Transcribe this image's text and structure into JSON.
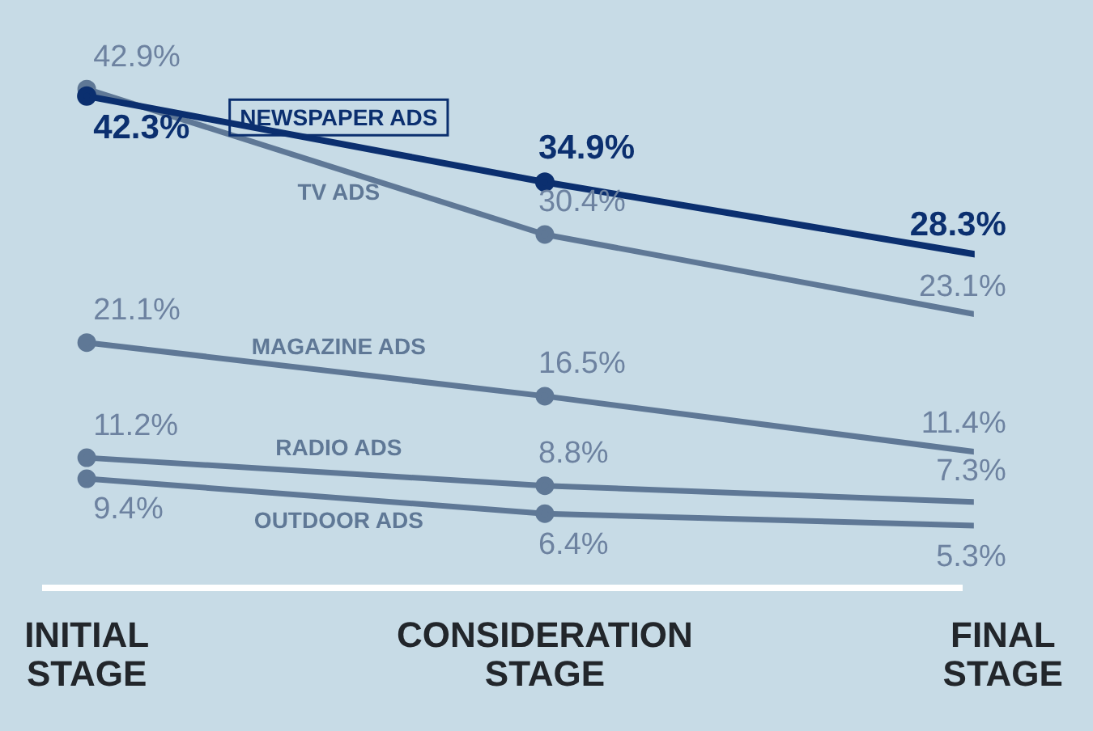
{
  "chart_data": {
    "type": "line",
    "categories": [
      "INITIAL STAGE",
      "CONSIDERATION STAGE",
      "FINAL STAGE"
    ],
    "series": [
      {
        "name": "NEWSPAPER ADS",
        "color": "#0b2f6f",
        "values": [
          42.3,
          34.9,
          28.3
        ],
        "value_labels": [
          "42.3%",
          "34.9%",
          "28.3%"
        ]
      },
      {
        "name": "TV ADS",
        "color": "#5f7896",
        "values": [
          42.9,
          30.4,
          23.1
        ],
        "value_labels": [
          "42.9%",
          "30.4%",
          "23.1%"
        ]
      },
      {
        "name": "MAGAZINE ADS",
        "color": "#5f7896",
        "values": [
          21.1,
          16.5,
          11.4
        ],
        "value_labels": [
          "21.1%",
          "16.5%",
          "11.4%"
        ]
      },
      {
        "name": "RADIO ADS",
        "color": "#5f7896",
        "values": [
          11.2,
          8.8,
          7.3
        ],
        "value_labels": [
          "11.2%",
          "8.8%",
          "7.3%"
        ]
      },
      {
        "name": "OUTDOOR ADS",
        "color": "#5f7896",
        "values": [
          9.4,
          6.4,
          5.3
        ],
        "value_labels": [
          "9.4%",
          "6.4%",
          "5.3%"
        ]
      }
    ],
    "grid": false,
    "legend": false,
    "marker": "circle",
    "line_style": "solid"
  }
}
